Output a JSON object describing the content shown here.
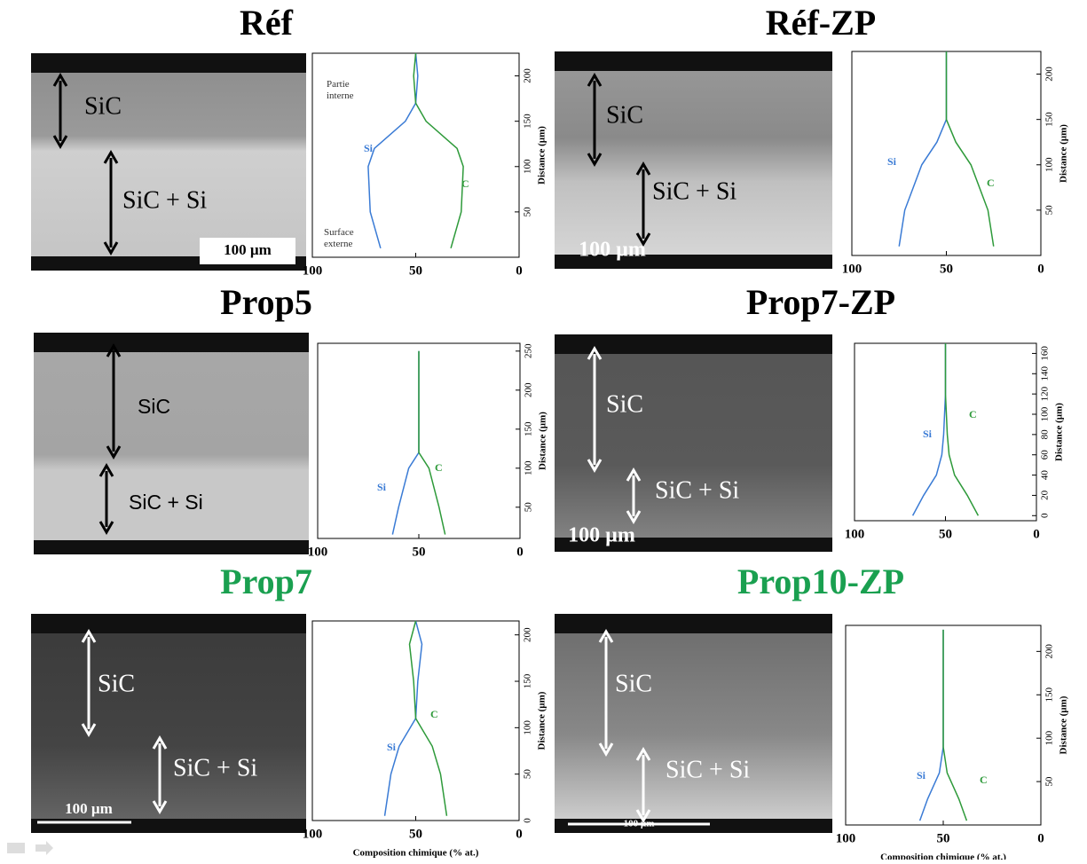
{
  "chart_data": [
    {
      "type": "line",
      "title": "Réf",
      "title_color": "#000000",
      "image": {
        "labels": [
          "SiC",
          "SiC + Si"
        ],
        "scale": "100 µm"
      },
      "annotations": [
        "Partie\ninterne",
        "Surface\nexterne"
      ],
      "ylabel": "Distance (µm)",
      "y": [
        10,
        50,
        100,
        120,
        150,
        170,
        200,
        225
      ],
      "series": [
        {
          "name": "Si",
          "color": "#3a7bd5",
          "values": [
            67,
            72,
            73,
            70,
            55,
            50,
            49,
            50
          ]
        },
        {
          "name": "C",
          "color": "#2e9a3a",
          "values": [
            33,
            28,
            27,
            30,
            45,
            50,
            51,
            50
          ]
        }
      ],
      "xlim": [
        100,
        0
      ],
      "xticks": [
        100,
        50,
        0
      ],
      "ylim": [
        0,
        225
      ],
      "yticks": [
        50,
        100,
        150,
        200
      ]
    },
    {
      "type": "line",
      "title": "Réf-ZP",
      "title_color": "#000000",
      "image": {
        "labels": [
          "SiC",
          "SiC + Si"
        ],
        "scale": "100 µm"
      },
      "ylabel": "Distance (µm)",
      "y": [
        10,
        50,
        100,
        125,
        150,
        175,
        200,
        225
      ],
      "series": [
        {
          "name": "Si",
          "color": "#3a7bd5",
          "values": [
            75,
            72,
            63,
            55,
            50,
            50,
            50,
            50
          ]
        },
        {
          "name": "C",
          "color": "#2e9a3a",
          "values": [
            25,
            28,
            37,
            45,
            50,
            50,
            50,
            50
          ]
        }
      ],
      "xlim": [
        100,
        0
      ],
      "xticks": [
        100,
        50,
        0
      ],
      "ylim": [
        0,
        225
      ],
      "yticks": [
        50,
        100,
        150,
        200
      ]
    },
    {
      "type": "line",
      "title": "Prop5",
      "title_color": "#000000",
      "image": {
        "labels": [
          "SiC",
          "SiC + Si"
        ]
      },
      "ylabel": "Distance (µm)",
      "y": [
        15,
        50,
        100,
        120,
        150,
        200,
        250
      ],
      "series": [
        {
          "name": "Si",
          "color": "#3a7bd5",
          "values": [
            63,
            60,
            55,
            50,
            50,
            50,
            50
          ]
        },
        {
          "name": "C",
          "color": "#2e9a3a",
          "values": [
            37,
            40,
            45,
            50,
            50,
            50,
            50
          ]
        }
      ],
      "xlim": [
        100,
        0
      ],
      "xticks": [
        100,
        50,
        0
      ],
      "ylim": [
        10,
        260
      ],
      "yticks": [
        50,
        100,
        150,
        200,
        250
      ]
    },
    {
      "type": "line",
      "title": "Prop7-ZP",
      "title_color": "#000000",
      "image": {
        "labels": [
          "SiC",
          "SiC + Si"
        ],
        "scale": "100 µm"
      },
      "ylabel": "Distance (µm)",
      "y": [
        0,
        20,
        40,
        60,
        80,
        120,
        170
      ],
      "series": [
        {
          "name": "Si",
          "color": "#3a7bd5",
          "values": [
            68,
            62,
            55,
            52,
            51,
            50,
            50
          ]
        },
        {
          "name": "C",
          "color": "#2e9a3a",
          "values": [
            32,
            38,
            45,
            48,
            49,
            50,
            50
          ]
        }
      ],
      "xlim": [
        100,
        0
      ],
      "xticks": [
        100,
        50,
        0
      ],
      "ylim": [
        -5,
        170
      ],
      "yticks": [
        0,
        20,
        40,
        60,
        80,
        100,
        120,
        140,
        160
      ]
    },
    {
      "type": "line",
      "title": "Prop7",
      "title_color": "#1aa050",
      "image": {
        "labels": [
          "SiC",
          "SiC + Si"
        ],
        "scale": "100 µm"
      },
      "ylabel": "Distance (µm)",
      "xlabel": "Composition chimique (% at.)",
      "y": [
        5,
        50,
        80,
        110,
        150,
        190,
        215
      ],
      "series": [
        {
          "name": "Si",
          "color": "#3a7bd5",
          "values": [
            65,
            62,
            58,
            50,
            49,
            47,
            50
          ]
        },
        {
          "name": "C",
          "color": "#2e9a3a",
          "values": [
            35,
            38,
            42,
            50,
            51,
            53,
            50
          ]
        }
      ],
      "xlim": [
        100,
        0
      ],
      "xticks": [
        100,
        50,
        0
      ],
      "ylim": [
        0,
        215
      ],
      "yticks": [
        0,
        50,
        100,
        150,
        200
      ]
    },
    {
      "type": "line",
      "title": "Prop10-ZP",
      "title_color": "#1aa050",
      "image": {
        "labels": [
          "SiC",
          "SiC + Si"
        ],
        "scale": "100 µm"
      },
      "ylabel": "Distance (µm)",
      "xlabel": "Composition chimique (% at.)",
      "y": [
        5,
        30,
        60,
        90,
        150,
        200,
        225
      ],
      "series": [
        {
          "name": "Si",
          "color": "#3a7bd5",
          "values": [
            62,
            58,
            52,
            50,
            50,
            50,
            50
          ]
        },
        {
          "name": "C",
          "color": "#2e9a3a",
          "values": [
            38,
            42,
            48,
            50,
            50,
            50,
            50
          ]
        }
      ],
      "xlim": [
        100,
        0
      ],
      "xticks": [
        100,
        50,
        0
      ],
      "ylim": [
        0,
        230
      ],
      "yticks": [
        50,
        100,
        150,
        200
      ]
    }
  ]
}
